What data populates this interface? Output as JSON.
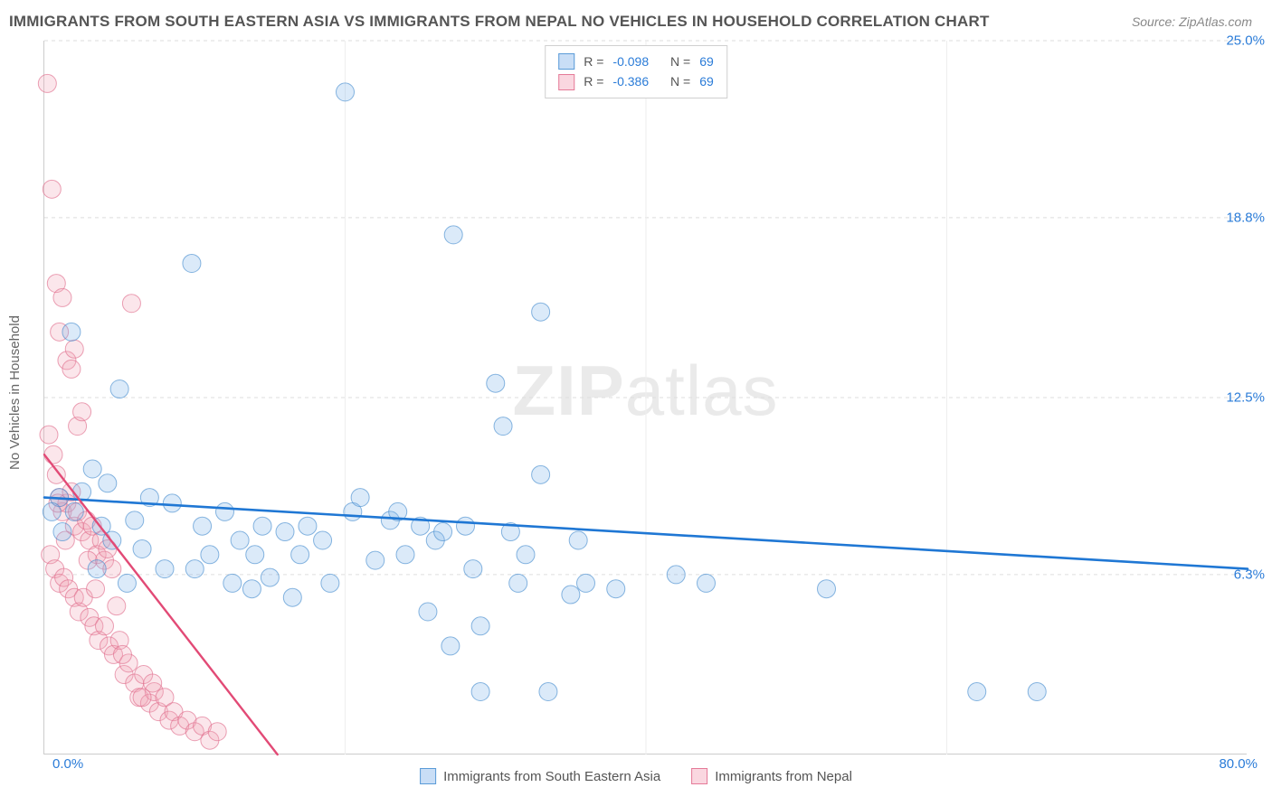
{
  "title": "IMMIGRANTS FROM SOUTH EASTERN ASIA VS IMMIGRANTS FROM NEPAL NO VEHICLES IN HOUSEHOLD CORRELATION CHART",
  "source": "Source: ZipAtlas.com",
  "y_axis_label": "No Vehicles in Household",
  "watermark_a": "ZIP",
  "watermark_b": "atlas",
  "chart": {
    "type": "scatter-correlation",
    "background_color": "#ffffff",
    "grid_color": "#dddddd",
    "axis_color": "#cccccc",
    "tick_label_color": "#2b7cd8",
    "text_color": "#666666",
    "x_min": 0.0,
    "x_max": 80.0,
    "y_min": 0.0,
    "y_max": 25.0,
    "x_min_label": "0.0%",
    "x_max_label": "80.0%",
    "y_ticks": [
      6.3,
      12.5,
      18.8,
      25.0
    ],
    "y_tick_labels": [
      "6.3%",
      "12.5%",
      "18.8%",
      "25.0%"
    ],
    "x_grid_positions": [
      20,
      40,
      60
    ],
    "marker_radius": 10,
    "marker_fill_opacity": 0.28,
    "marker_stroke_opacity": 0.65,
    "marker_stroke_width": 1,
    "series": [
      {
        "name": "Immigrants from South Eastern Asia",
        "color_fill": "#7fb5e8",
        "color_stroke": "#4a8fd0",
        "R": "-0.098",
        "N": "69",
        "regression": {
          "x1": 0,
          "y1": 9.0,
          "x2": 80,
          "y2": 6.5,
          "color": "#1f77d4",
          "width": 2.6
        },
        "points": [
          [
            1.0,
            9.0
          ],
          [
            1.8,
            14.8
          ],
          [
            2.0,
            8.5
          ],
          [
            3.2,
            10.0
          ],
          [
            3.5,
            6.5
          ],
          [
            3.8,
            8.0
          ],
          [
            4.2,
            9.5
          ],
          [
            4.5,
            7.5
          ],
          [
            5.0,
            12.8
          ],
          [
            5.5,
            6.0
          ],
          [
            6.0,
            8.2
          ],
          [
            7.0,
            9.0
          ],
          [
            8.0,
            6.5
          ],
          [
            9.8,
            17.2
          ],
          [
            10.5,
            8.0
          ],
          [
            11.0,
            7.0
          ],
          [
            12.0,
            8.5
          ],
          [
            12.5,
            6.0
          ],
          [
            13.0,
            7.5
          ],
          [
            13.8,
            5.8
          ],
          [
            14.5,
            8.0
          ],
          [
            15.0,
            6.2
          ],
          [
            16.0,
            7.8
          ],
          [
            16.5,
            5.5
          ],
          [
            17.0,
            7.0
          ],
          [
            17.5,
            8.0
          ],
          [
            18.5,
            7.5
          ],
          [
            19.0,
            6.0
          ],
          [
            20.0,
            23.2
          ],
          [
            20.5,
            8.5
          ],
          [
            21.0,
            9.0
          ],
          [
            22.0,
            6.8
          ],
          [
            23.0,
            8.2
          ],
          [
            24.0,
            7.0
          ],
          [
            25.0,
            8.0
          ],
          [
            25.5,
            5.0
          ],
          [
            26.0,
            7.5
          ],
          [
            27.0,
            3.8
          ],
          [
            27.2,
            18.2
          ],
          [
            28.0,
            8.0
          ],
          [
            28.5,
            6.5
          ],
          [
            29.0,
            4.5
          ],
          [
            29.0,
            2.2
          ],
          [
            30.0,
            13.0
          ],
          [
            30.5,
            11.5
          ],
          [
            31.0,
            7.8
          ],
          [
            31.5,
            6.0
          ],
          [
            33.0,
            15.5
          ],
          [
            33.0,
            9.8
          ],
          [
            35.0,
            5.6
          ],
          [
            33.5,
            2.2
          ],
          [
            36.0,
            6.0
          ],
          [
            38.0,
            5.8
          ],
          [
            42.0,
            6.3
          ],
          [
            44.0,
            6.0
          ],
          [
            52.0,
            5.8
          ],
          [
            62.0,
            2.2
          ],
          [
            66.0,
            2.2
          ],
          [
            0.5,
            8.5
          ],
          [
            1.2,
            7.8
          ],
          [
            2.5,
            9.2
          ],
          [
            6.5,
            7.2
          ],
          [
            8.5,
            8.8
          ],
          [
            10.0,
            6.5
          ],
          [
            14.0,
            7.0
          ],
          [
            23.5,
            8.5
          ],
          [
            26.5,
            7.8
          ],
          [
            32.0,
            7.0
          ],
          [
            35.5,
            7.5
          ]
        ]
      },
      {
        "name": "Immigrants from Nepal",
        "color_fill": "#f2a5b8",
        "color_stroke": "#e06e8e",
        "R": "-0.386",
        "N": "69",
        "regression": {
          "x1": 0,
          "y1": 10.5,
          "x2": 15.5,
          "y2": 0,
          "color": "#e24a76",
          "width": 2.4
        },
        "points": [
          [
            0.2,
            23.5
          ],
          [
            0.5,
            19.8
          ],
          [
            0.8,
            16.5
          ],
          [
            1.0,
            14.8
          ],
          [
            1.2,
            16.0
          ],
          [
            1.5,
            13.8
          ],
          [
            1.8,
            13.5
          ],
          [
            2.0,
            14.2
          ],
          [
            2.2,
            11.5
          ],
          [
            2.5,
            12.0
          ],
          [
            0.3,
            11.2
          ],
          [
            0.6,
            10.5
          ],
          [
            0.8,
            9.8
          ],
          [
            1.0,
            9.0
          ],
          [
            1.2,
            8.5
          ],
          [
            1.5,
            8.8
          ],
          [
            1.8,
            9.2
          ],
          [
            2.0,
            8.0
          ],
          [
            2.2,
            8.5
          ],
          [
            2.5,
            7.8
          ],
          [
            2.8,
            8.2
          ],
          [
            3.0,
            7.5
          ],
          [
            3.2,
            8.0
          ],
          [
            3.5,
            7.0
          ],
          [
            3.8,
            7.5
          ],
          [
            4.0,
            6.8
          ],
          [
            4.2,
            7.2
          ],
          [
            4.5,
            6.5
          ],
          [
            0.4,
            7.0
          ],
          [
            0.7,
            6.5
          ],
          [
            1.0,
            6.0
          ],
          [
            1.3,
            6.2
          ],
          [
            1.6,
            5.8
          ],
          [
            2.0,
            5.5
          ],
          [
            2.3,
            5.0
          ],
          [
            2.6,
            5.5
          ],
          [
            3.0,
            4.8
          ],
          [
            3.3,
            4.5
          ],
          [
            3.6,
            4.0
          ],
          [
            4.0,
            4.5
          ],
          [
            4.3,
            3.8
          ],
          [
            4.6,
            3.5
          ],
          [
            5.0,
            4.0
          ],
          [
            5.3,
            2.8
          ],
          [
            5.6,
            3.2
          ],
          [
            6.0,
            2.5
          ],
          [
            6.3,
            2.0
          ],
          [
            6.6,
            2.8
          ],
          [
            7.0,
            1.8
          ],
          [
            7.3,
            2.2
          ],
          [
            7.6,
            1.5
          ],
          [
            8.0,
            2.0
          ],
          [
            8.3,
            1.2
          ],
          [
            8.6,
            1.5
          ],
          [
            9.0,
            1.0
          ],
          [
            9.5,
            1.2
          ],
          [
            10.0,
            0.8
          ],
          [
            10.5,
            1.0
          ],
          [
            11.0,
            0.5
          ],
          [
            11.5,
            0.8
          ],
          [
            5.8,
            15.8
          ],
          [
            7.2,
            2.5
          ],
          [
            4.8,
            5.2
          ],
          [
            2.9,
            6.8
          ],
          [
            1.4,
            7.5
          ],
          [
            0.9,
            8.8
          ],
          [
            3.4,
            5.8
          ],
          [
            5.2,
            3.5
          ],
          [
            6.5,
            2.0
          ]
        ]
      }
    ]
  },
  "legend_top": {
    "r_label": "R =",
    "n_label": "N ="
  }
}
